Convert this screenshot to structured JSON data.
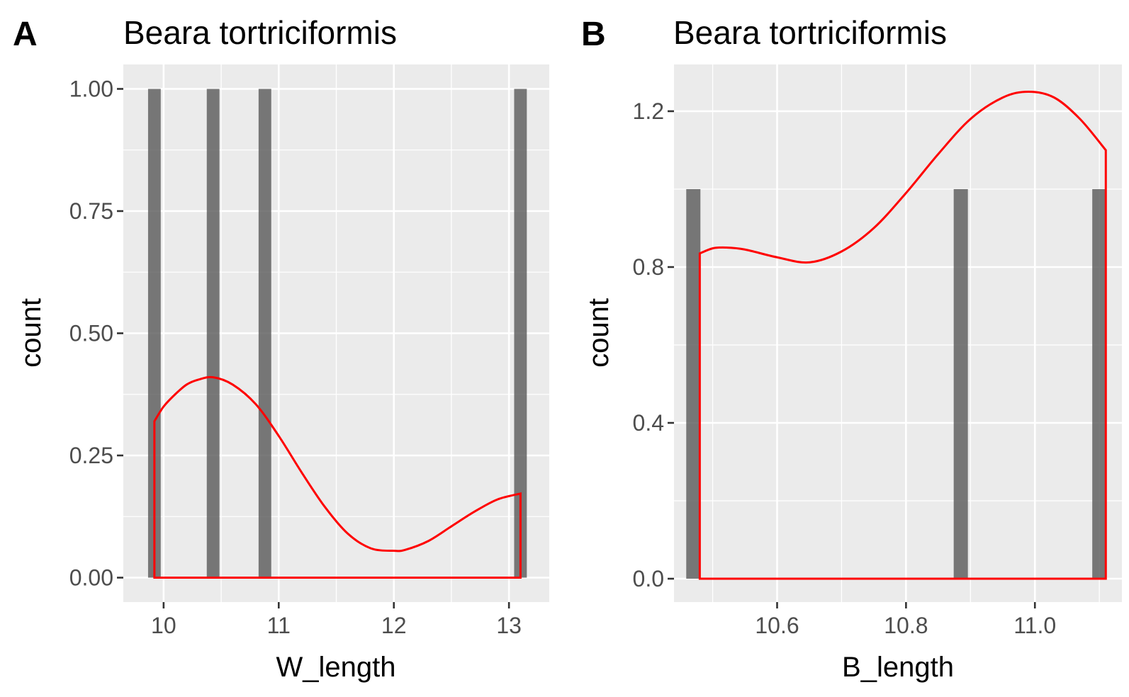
{
  "chart_data": [
    {
      "type": "bar",
      "panel_label": "A",
      "title": "Beara tortriciformis",
      "xlabel": "W_length",
      "ylabel": "count",
      "xlim": [
        9.65,
        13.35
      ],
      "ylim": [
        -0.05,
        1.05
      ],
      "x_ticks": [
        10,
        11,
        12,
        13
      ],
      "x_tick_labels": [
        "10",
        "11",
        "12",
        "13"
      ],
      "y_ticks": [
        0,
        0.25,
        0.5,
        0.75,
        1.0
      ],
      "y_tick_labels": [
        "0.00",
        "0.25",
        "0.50",
        "0.75",
        "1.00"
      ],
      "grid": true,
      "bar_width": 0.11,
      "bars": [
        {
          "x": 9.92,
          "count": 1
        },
        {
          "x": 10.43,
          "count": 1
        },
        {
          "x": 10.88,
          "count": 1
        },
        {
          "x": 13.1,
          "count": 1
        }
      ],
      "density_color": "#ff0000",
      "bar_color": "#595959",
      "density_line": {
        "x": [
          9.92,
          10.0,
          10.1,
          10.2,
          10.3,
          10.43,
          10.6,
          10.8,
          11.0,
          11.2,
          11.4,
          11.6,
          11.8,
          12.0,
          12.1,
          12.3,
          12.5,
          12.7,
          12.9,
          13.1
        ],
        "y": [
          0.32,
          0.35,
          0.375,
          0.395,
          0.405,
          0.41,
          0.395,
          0.355,
          0.29,
          0.215,
          0.145,
          0.09,
          0.06,
          0.055,
          0.057,
          0.075,
          0.105,
          0.135,
          0.16,
          0.172
        ]
      }
    },
    {
      "type": "bar",
      "panel_label": "B",
      "title": "Beara tortriciformis",
      "xlabel": "B_length",
      "ylabel": "count",
      "xlim": [
        10.44,
        11.135
      ],
      "ylim": [
        -0.06,
        1.32
      ],
      "x_ticks": [
        10.6,
        10.8,
        11.0
      ],
      "x_tick_labels": [
        "10.6",
        "10.8",
        "11.0"
      ],
      "y_ticks": [
        0,
        0.4,
        0.8,
        1.2
      ],
      "y_tick_labels": [
        "0.0",
        "0.4",
        "0.8",
        "1.2"
      ],
      "grid": true,
      "bar_width": 0.022,
      "bars": [
        {
          "x": 10.47,
          "count": 1
        },
        {
          "x": 10.885,
          "count": 1
        },
        {
          "x": 11.1,
          "count": 1
        }
      ],
      "density_color": "#ff0000",
      "bar_color": "#595959",
      "density_line": {
        "x": [
          10.48,
          10.5,
          10.52,
          10.55,
          10.6,
          10.65,
          10.7,
          10.75,
          10.8,
          10.85,
          10.9,
          10.95,
          10.99,
          11.03,
          11.07,
          11.11
        ],
        "y": [
          0.835,
          0.848,
          0.85,
          0.845,
          0.825,
          0.812,
          0.84,
          0.9,
          0.99,
          1.09,
          1.18,
          1.235,
          1.25,
          1.235,
          1.18,
          1.1
        ]
      }
    }
  ]
}
